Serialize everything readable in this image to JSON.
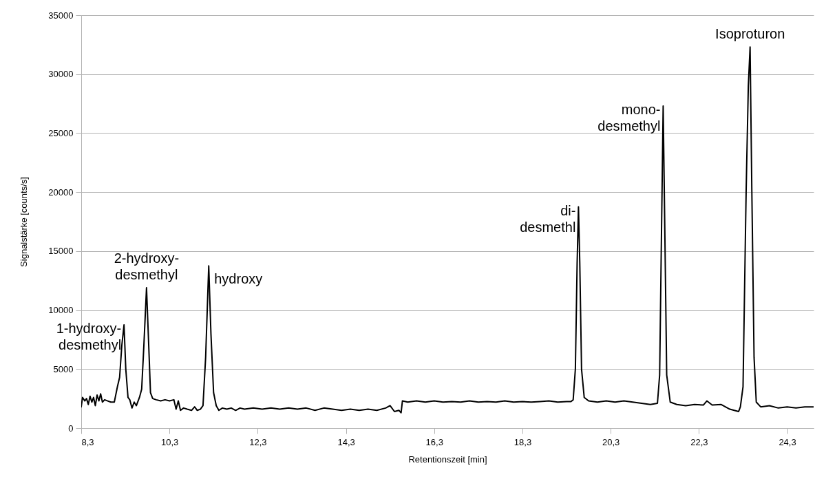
{
  "chart_data": {
    "type": "line",
    "xlabel": "Retentionszeit [min]",
    "ylabel": "Signalstärke [counts/s]",
    "xlim": [
      8.3,
      24.9
    ],
    "ylim": [
      0,
      35000
    ],
    "xticks": [
      {
        "value": 8.3,
        "label": "8,3"
      },
      {
        "value": 10.3,
        "label": "10,3"
      },
      {
        "value": 12.3,
        "label": "12,3"
      },
      {
        "value": 14.3,
        "label": "14,3"
      },
      {
        "value": 16.3,
        "label": "16,3"
      },
      {
        "value": 18.3,
        "label": "18,3"
      },
      {
        "value": 20.3,
        "label": "20,3"
      },
      {
        "value": 22.3,
        "label": "22,3"
      },
      {
        "value": 24.3,
        "label": "24,3"
      }
    ],
    "yticks": [
      0,
      5000,
      10000,
      15000,
      20000,
      25000,
      30000,
      35000
    ],
    "grid": "y",
    "marker": "none",
    "line_style": "solid",
    "series": [
      {
        "color": "#000000",
        "x": [
          8.3,
          8.33,
          8.38,
          8.42,
          8.46,
          8.5,
          8.54,
          8.58,
          8.62,
          8.66,
          8.7,
          8.74,
          8.78,
          8.83,
          8.9,
          8.97,
          9.05,
          9.12,
          9.17,
          9.22,
          9.27,
          9.31,
          9.36,
          9.4,
          9.45,
          9.5,
          9.55,
          9.62,
          9.67,
          9.72,
          9.78,
          9.83,
          9.87,
          9.92,
          10.0,
          10.1,
          10.2,
          10.3,
          10.4,
          10.45,
          10.5,
          10.55,
          10.62,
          10.7,
          10.8,
          10.87,
          10.93,
          11.0,
          11.06,
          11.12,
          11.19,
          11.24,
          11.3,
          11.36,
          11.42,
          11.5,
          11.6,
          11.7,
          11.8,
          11.9,
          12.0,
          12.2,
          12.4,
          12.6,
          12.8,
          13.0,
          13.2,
          13.4,
          13.6,
          13.8,
          14.0,
          14.2,
          14.4,
          14.6,
          14.8,
          15.0,
          15.2,
          15.3,
          15.4,
          15.5,
          15.55,
          15.58,
          15.7,
          15.9,
          16.1,
          16.3,
          16.5,
          16.7,
          16.9,
          17.1,
          17.3,
          17.5,
          17.7,
          17.9,
          18.1,
          18.3,
          18.5,
          18.7,
          18.9,
          19.1,
          19.3,
          19.4,
          19.45,
          19.5,
          19.54,
          19.57,
          19.6,
          19.64,
          19.7,
          19.8,
          20.0,
          20.2,
          20.4,
          20.6,
          20.8,
          21.0,
          21.2,
          21.36,
          21.41,
          21.45,
          21.49,
          21.53,
          21.57,
          21.65,
          21.8,
          22.0,
          22.2,
          22.4,
          22.48,
          22.6,
          22.8,
          23.0,
          23.1,
          23.2,
          23.24,
          23.3,
          23.37,
          23.42,
          23.46,
          23.5,
          23.55,
          23.6,
          23.7,
          23.9,
          24.1,
          24.3,
          24.5,
          24.7,
          24.9
        ],
        "values": [
          1800,
          2600,
          2300,
          2500,
          2000,
          2700,
          2200,
          2600,
          1900,
          2800,
          2300,
          2900,
          2200,
          2400,
          2300,
          2200,
          2200,
          3500,
          4300,
          7000,
          8750,
          5000,
          2600,
          2400,
          1700,
          2200,
          1900,
          2600,
          3300,
          7000,
          11900,
          7000,
          3000,
          2500,
          2400,
          2300,
          2400,
          2300,
          2400,
          1600,
          2300,
          1500,
          1700,
          1600,
          1500,
          1800,
          1500,
          1600,
          1900,
          6000,
          13750,
          8000,
          3000,
          1900,
          1500,
          1700,
          1600,
          1700,
          1500,
          1700,
          1600,
          1700,
          1600,
          1700,
          1600,
          1700,
          1600,
          1700,
          1500,
          1700,
          1600,
          1500,
          1600,
          1500,
          1600,
          1500,
          1700,
          1900,
          1400,
          1500,
          1300,
          2300,
          2200,
          2300,
          2200,
          2300,
          2200,
          2250,
          2200,
          2300,
          2200,
          2250,
          2200,
          2300,
          2200,
          2250,
          2200,
          2250,
          2300,
          2200,
          2250,
          2250,
          2400,
          5000,
          14000,
          18750,
          14000,
          5000,
          2600,
          2300,
          2200,
          2300,
          2200,
          2300,
          2200,
          2100,
          2000,
          2100,
          4500,
          16000,
          27300,
          16000,
          4500,
          2200,
          2000,
          1900,
          2000,
          1950,
          2300,
          1950,
          2000,
          1600,
          1500,
          1400,
          1800,
          3500,
          20000,
          29000,
          32300,
          20000,
          6000,
          2200,
          1800,
          1900,
          1700,
          1800,
          1700,
          1800,
          1800
        ]
      }
    ],
    "annotations": [
      {
        "text": "1-hydroxy-\ndesmethyl",
        "x": 9.27,
        "y": 8750
      },
      {
        "text": "2-hydroxy-\ndesmethyl",
        "x": 9.78,
        "y": 11900
      },
      {
        "text": "hydroxy",
        "x": 11.19,
        "y": 13750
      },
      {
        "text": "di-\ndesmethl",
        "x": 19.57,
        "y": 18750
      },
      {
        "text": "mono-\ndesmethyl",
        "x": 21.49,
        "y": 27300
      },
      {
        "text": "Isoproturon",
        "x": 23.46,
        "y": 32300
      }
    ]
  }
}
